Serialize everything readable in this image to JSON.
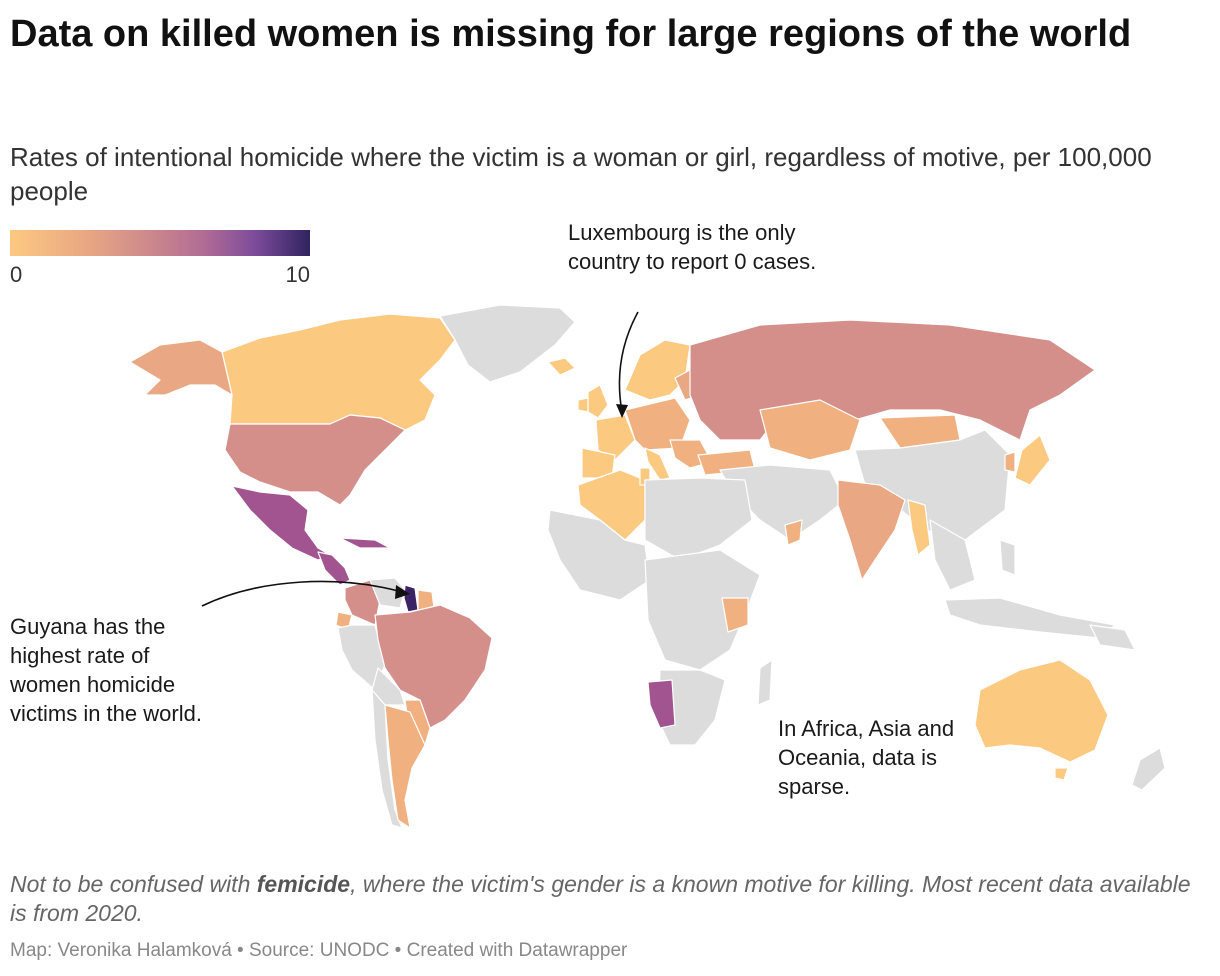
{
  "title": "Data on killed women is missing for large regions of the world",
  "subtitle": "Rates of intentional homicide where the victim is a woman or girl, regardless of motive, per 100,000 people",
  "legend": {
    "min_label": "0",
    "max_label": "10",
    "min": 0,
    "max": 10,
    "colors": [
      "#fcc981",
      "#e9a883",
      "#cf8b8b",
      "#b06b95",
      "#7b4b9a",
      "#30235f"
    ]
  },
  "annotations": {
    "luxembourg": "Luxembourg is the only country to report 0 cases.",
    "guyana": "Guyana has the highest rate of women homicide victims in the world.",
    "africa_asia": "In Africa, Asia and Oceania, data is sparse."
  },
  "note": {
    "before": "Not to be confused with ",
    "bold": "femicide",
    "after": ", where the victim's gender is a known motive for killing. Most recent data available is from 2020."
  },
  "credit": "Map: Veronika Halamková • Source: UNODC • Created with Datawrapper",
  "map_colors": {
    "no_data": "#dcdcdc",
    "border": "#ffffff",
    "low": "#fcc981",
    "low_mid": "#f0b07f",
    "mid": "#d48f8b",
    "high": "#a1548f",
    "very_high": "#3a2466"
  }
}
